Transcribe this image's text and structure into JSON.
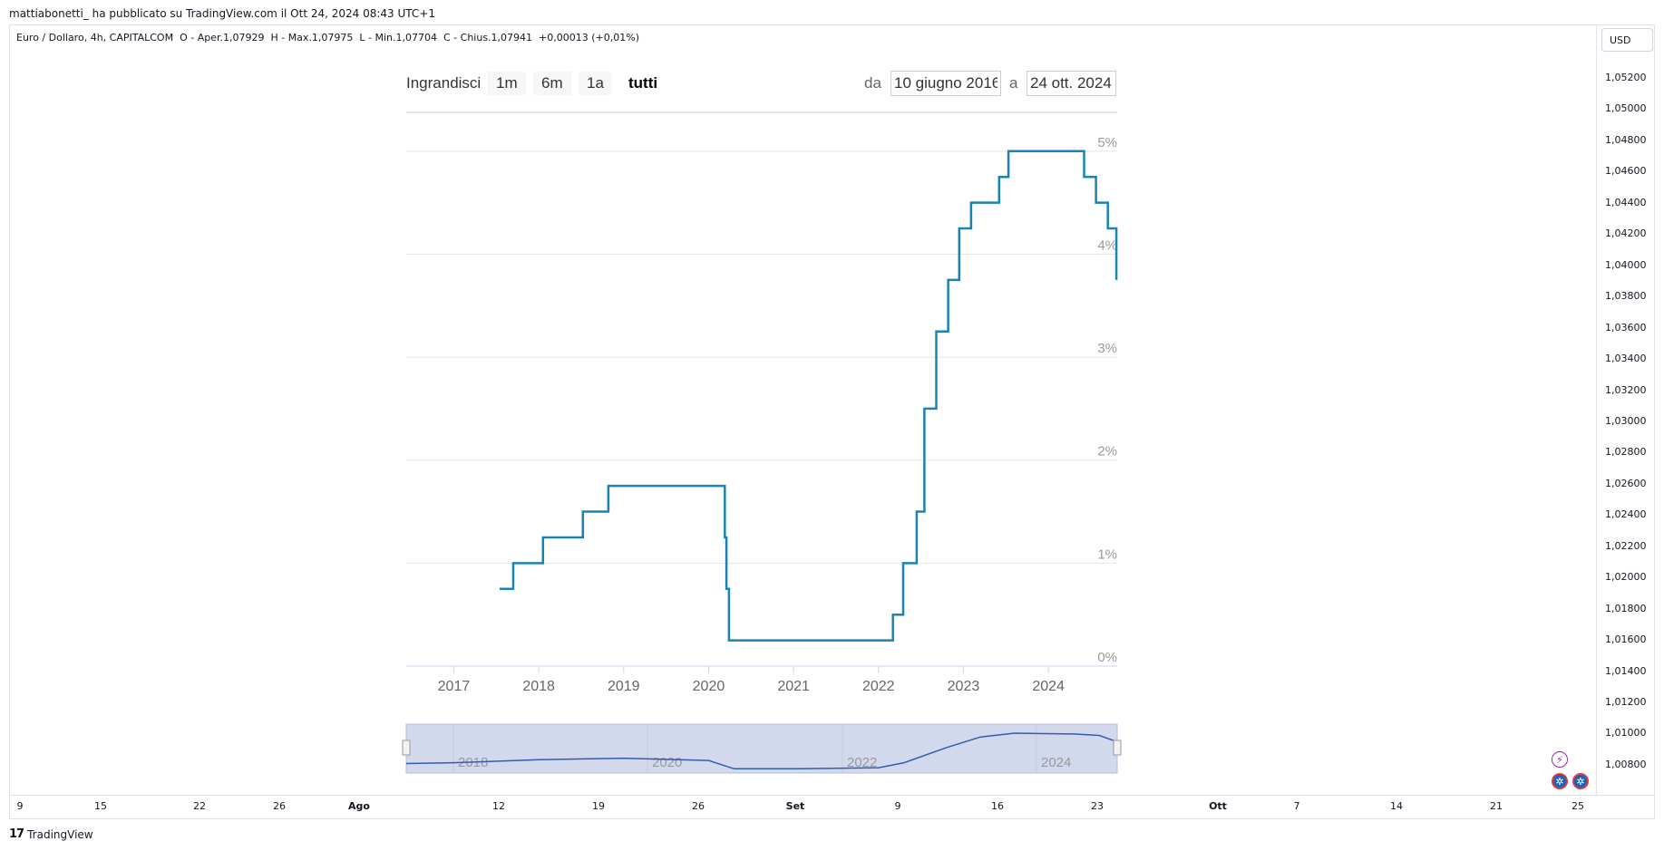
{
  "header": {
    "publisher": "mattiabonetti_ ha pubblicato su TradingView.com il Ott 24, 2024 08:43 UTC+1",
    "legend": "Euro / Dollaro, 4h, CAPITALCOM  O - Aper.1,07929  H - Max.1,07975  L - Min.1,07704  C - Chius.1,07941  +0,00013 (+0,01%)",
    "currency": "USD"
  },
  "price_axis": [
    "1,05200",
    "1,05000",
    "1,04800",
    "1,04600",
    "1,04400",
    "1,04200",
    "1,04000",
    "1,03800",
    "1,03600",
    "1,03400",
    "1,03200",
    "1,03000",
    "1,02800",
    "1,02600",
    "1,02400",
    "1,02200",
    "1,02000",
    "1,01800",
    "1,01600",
    "1,01400",
    "1,01200",
    "1,01000",
    "1,00800"
  ],
  "time_axis": [
    {
      "label": "9",
      "bold": false
    },
    {
      "label": "15",
      "bold": false
    },
    {
      "label": "22",
      "bold": false
    },
    {
      "label": "26",
      "bold": false
    },
    {
      "label": "Ago",
      "bold": true
    },
    {
      "label": "12",
      "bold": false
    },
    {
      "label": "19",
      "bold": false
    },
    {
      "label": "26",
      "bold": false
    },
    {
      "label": "Set",
      "bold": true
    },
    {
      "label": "9",
      "bold": false
    },
    {
      "label": "16",
      "bold": false
    },
    {
      "label": "23",
      "bold": false
    },
    {
      "label": "Ott",
      "bold": true
    },
    {
      "label": "7",
      "bold": false
    },
    {
      "label": "14",
      "bold": false
    },
    {
      "label": "21",
      "bold": false
    },
    {
      "label": "25",
      "bold": false
    }
  ],
  "widget": {
    "zoom_label": "Ingrandisci",
    "zoom_buttons": [
      "1m",
      "6m",
      "1a",
      "tutti"
    ],
    "active_zoom": "tutti",
    "from_label": "da",
    "from_date": "10 giugno 2016",
    "to_label": "a",
    "to_date": "24 ott. 2024",
    "navigator_labels": [
      "2018",
      "2020",
      "2022",
      "2024"
    ]
  },
  "chart_data": {
    "type": "line",
    "step": true,
    "x_ticks": [
      "2017",
      "2018",
      "2019",
      "2020",
      "2021",
      "2022",
      "2023",
      "2024"
    ],
    "y_ticks": [
      "0%",
      "1%",
      "2%",
      "3%",
      "4%",
      "5%"
    ],
    "ylim": [
      0,
      5.5
    ],
    "xlim": [
      2016.44,
      2024.81
    ],
    "line_color": "#1a83b6",
    "grid": true,
    "series": [
      {
        "points": [
          [
            2017.54,
            0.75
          ],
          [
            2017.7,
            0.75
          ],
          [
            2017.7,
            1.0
          ],
          [
            2018.05,
            1.0
          ],
          [
            2018.05,
            1.25
          ],
          [
            2018.52,
            1.25
          ],
          [
            2018.52,
            1.5
          ],
          [
            2018.82,
            1.5
          ],
          [
            2018.82,
            1.75
          ],
          [
            2020.19,
            1.75
          ],
          [
            2020.19,
            1.25
          ],
          [
            2020.21,
            1.25
          ],
          [
            2020.21,
            0.75
          ],
          [
            2020.24,
            0.75
          ],
          [
            2020.24,
            0.25
          ],
          [
            2022.17,
            0.25
          ],
          [
            2022.17,
            0.5
          ],
          [
            2022.29,
            0.5
          ],
          [
            2022.29,
            1.0
          ],
          [
            2022.45,
            1.0
          ],
          [
            2022.45,
            1.5
          ],
          [
            2022.54,
            1.5
          ],
          [
            2022.54,
            2.5
          ],
          [
            2022.68,
            2.5
          ],
          [
            2022.68,
            3.25
          ],
          [
            2022.82,
            3.25
          ],
          [
            2022.82,
            3.75
          ],
          [
            2022.95,
            3.75
          ],
          [
            2022.95,
            4.25
          ],
          [
            2023.09,
            4.25
          ],
          [
            2023.09,
            4.5
          ],
          [
            2023.42,
            4.5
          ],
          [
            2023.42,
            4.75
          ],
          [
            2023.53,
            4.75
          ],
          [
            2023.53,
            5.0
          ],
          [
            2024.42,
            5.0
          ],
          [
            2024.42,
            4.75
          ],
          [
            2024.56,
            4.75
          ],
          [
            2024.56,
            4.5
          ],
          [
            2024.7,
            4.5
          ],
          [
            2024.7,
            4.25
          ],
          [
            2024.8,
            4.25
          ],
          [
            2024.8,
            3.75
          ]
        ]
      }
    ]
  },
  "navigator_data": {
    "points": [
      [
        2016.44,
        0.9
      ],
      [
        2017.0,
        1.0
      ],
      [
        2018.0,
        1.4
      ],
      [
        2019.0,
        1.6
      ],
      [
        2020.0,
        1.3
      ],
      [
        2020.3,
        0.2
      ],
      [
        2021.0,
        0.2
      ],
      [
        2022.0,
        0.35
      ],
      [
        2022.3,
        1.0
      ],
      [
        2022.8,
        3.0
      ],
      [
        2023.2,
        4.4
      ],
      [
        2023.6,
        4.9
      ],
      [
        2024.3,
        4.8
      ],
      [
        2024.6,
        4.6
      ],
      [
        2024.8,
        3.8
      ]
    ]
  }
}
